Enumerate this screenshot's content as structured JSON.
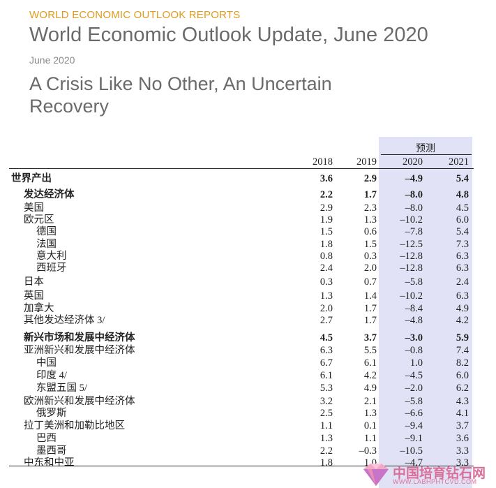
{
  "header": {
    "kicker": "WORLD ECONOMIC OUTLOOK REPORTS",
    "title": "World Economic Outlook Update, June 2020",
    "date": "June 2020",
    "subtitle": "A Crisis Like No Other, An Uncertain Recovery"
  },
  "table": {
    "projection_label": "预测",
    "years": [
      "2018",
      "2019",
      "2020",
      "2021"
    ],
    "rows": [
      {
        "label": "世界产出",
        "v": [
          "3.6",
          "2.9",
          "–4.9",
          "5.4"
        ]
      },
      {
        "label": "发达经济体",
        "v": [
          "2.2",
          "1.7",
          "–8.0",
          "4.8"
        ]
      },
      {
        "label": "美国",
        "v": [
          "2.9",
          "2.3",
          "–8.0",
          "4.5"
        ]
      },
      {
        "label": "欧元区",
        "v": [
          "1.9",
          "1.3",
          "–10.2",
          "6.0"
        ]
      },
      {
        "label": "德国",
        "v": [
          "1.5",
          "0.6",
          "–7.8",
          "5.4"
        ]
      },
      {
        "label": "法国",
        "v": [
          "1.8",
          "1.5",
          "–12.5",
          "7.3"
        ]
      },
      {
        "label": "意大利",
        "v": [
          "0.8",
          "0.3",
          "–12.8",
          "6.3"
        ]
      },
      {
        "label": "西班牙",
        "v": [
          "2.4",
          "2.0",
          "–12.8",
          "6.3"
        ]
      },
      {
        "label": "日本",
        "v": [
          "0.3",
          "0.7",
          "–5.8",
          "2.4"
        ]
      },
      {
        "label": "英国",
        "v": [
          "1.3",
          "1.4",
          "–10.2",
          "6.3"
        ]
      },
      {
        "label": "加拿大",
        "v": [
          "2.0",
          "1.7",
          "–8.4",
          "4.9"
        ]
      },
      {
        "label": "其他发达经济体 3/",
        "v": [
          "2.7",
          "1.7",
          "–4.8",
          "4.2"
        ]
      },
      {
        "label": "新兴市场和发展中经济体",
        "v": [
          "4.5",
          "3.7",
          "–3.0",
          "5.9"
        ]
      },
      {
        "label": "亚洲新兴和发展中经济体",
        "v": [
          "6.3",
          "5.5",
          "–0.8",
          "7.4"
        ]
      },
      {
        "label": "中国",
        "v": [
          "6.7",
          "6.1",
          "1.0",
          "8.2"
        ]
      },
      {
        "label": "印度 4/",
        "v": [
          "6.1",
          "4.2",
          "–4.5",
          "6.0"
        ]
      },
      {
        "label": "东盟五国 5/",
        "v": [
          "5.3",
          "4.9",
          "–2.0",
          "6.2"
        ]
      },
      {
        "label": "欧洲新兴和发展中经济体",
        "v": [
          "3.2",
          "2.1",
          "–5.8",
          "4.3"
        ]
      },
      {
        "label": "俄罗斯",
        "v": [
          "2.5",
          "1.3",
          "–6.6",
          "4.1"
        ]
      },
      {
        "label": "拉丁美洲和加勒比地区",
        "v": [
          "1.1",
          "0.1",
          "–9.4",
          "3.7"
        ]
      },
      {
        "label": "巴西",
        "v": [
          "1.3",
          "1.1",
          "–9.1",
          "3.6"
        ]
      },
      {
        "label": "墨西哥",
        "v": [
          "2.2",
          "–0.3",
          "–10.5",
          "3.3"
        ]
      },
      {
        "label": "中东和中亚",
        "v": [
          "1.8",
          "1.0",
          "–4.7",
          "3.3"
        ]
      }
    ]
  },
  "watermark": {
    "name": "中国培育钻石网",
    "url": "WWW.LABHPHTCVD.COM"
  }
}
